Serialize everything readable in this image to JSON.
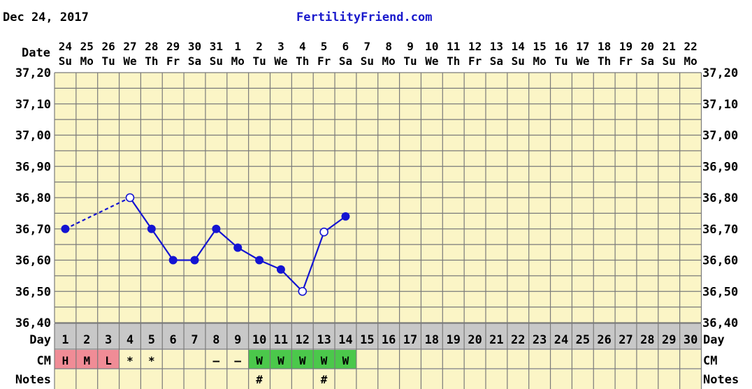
{
  "header": {
    "date": "Dec 24, 2017",
    "site": "FertilityFriend.com"
  },
  "labels": {
    "date_row": "Date",
    "day_row": "Day",
    "cm_row": "CM",
    "notes_row": "Notes"
  },
  "colors": {
    "grid_bg": "#fbf5c6",
    "grid_line": "#7a7a7a",
    "line": "#1414d2",
    "day_bg": "#c8c8c8",
    "period_bg": "#f08c96",
    "cm_watery_bg": "#4bc84b",
    "row_bg": "#fbf5c6"
  },
  "chart_data": {
    "type": "line",
    "title": "",
    "x": {
      "date_numbers": [
        "24",
        "25",
        "26",
        "27",
        "28",
        "29",
        "30",
        "31",
        "1",
        "2",
        "3",
        "4",
        "5",
        "6",
        "7",
        "8",
        "9",
        "10",
        "11",
        "12",
        "13",
        "14",
        "15",
        "16",
        "17",
        "18",
        "19",
        "20",
        "21",
        "22"
      ],
      "weekdays": [
        "Su",
        "Mo",
        "Tu",
        "We",
        "Th",
        "Fr",
        "Sa",
        "Su",
        "Mo",
        "Tu",
        "We",
        "Th",
        "Fr",
        "Sa",
        "Su",
        "Mo",
        "Tu",
        "We",
        "Th",
        "Fr",
        "Sa",
        "Su",
        "Mo",
        "Tu",
        "We",
        "Th",
        "Fr",
        "Sa",
        "Su",
        "Mo"
      ],
      "cycle_days": [
        "1",
        "2",
        "3",
        "4",
        "5",
        "6",
        "7",
        "8",
        "9",
        "10",
        "11",
        "12",
        "13",
        "14",
        "15",
        "16",
        "17",
        "18",
        "19",
        "20",
        "21",
        "22",
        "23",
        "24",
        "25",
        "26",
        "27",
        "28",
        "29",
        "30"
      ]
    },
    "y": {
      "ylim": [
        36.4,
        37.2
      ],
      "tick_values": [
        36.4,
        36.5,
        36.6,
        36.7,
        36.8,
        36.9,
        37.0,
        37.1,
        37.2
      ],
      "tick_labels": [
        "36,40",
        "36,50",
        "36,60",
        "36,70",
        "36,80",
        "36,90",
        "37,00",
        "37,10",
        "37,20"
      ],
      "grid_step": 0.05
    },
    "series": [
      {
        "points": [
          {
            "day": 1,
            "temp": 36.7,
            "marker": "filled"
          },
          {
            "day": 4,
            "temp": 36.8,
            "marker": "open"
          },
          {
            "day": 5,
            "temp": 36.7,
            "marker": "filled"
          },
          {
            "day": 6,
            "temp": 36.6,
            "marker": "filled"
          },
          {
            "day": 7,
            "temp": 36.6,
            "marker": "filled"
          },
          {
            "day": 8,
            "temp": 36.7,
            "marker": "filled"
          },
          {
            "day": 9,
            "temp": 36.64,
            "marker": "filled"
          },
          {
            "day": 10,
            "temp": 36.6,
            "marker": "filled"
          },
          {
            "day": 11,
            "temp": 36.57,
            "marker": "filled"
          },
          {
            "day": 12,
            "temp": 36.5,
            "marker": "open"
          },
          {
            "day": 13,
            "temp": 36.69,
            "marker": "open"
          },
          {
            "day": 14,
            "temp": 36.74,
            "marker": "filled"
          }
        ],
        "dashed_segments": [
          [
            1,
            4
          ]
        ]
      }
    ],
    "cm_row": [
      {
        "day": 1,
        "label": "H",
        "style": "period"
      },
      {
        "day": 2,
        "label": "M",
        "style": "period"
      },
      {
        "day": 3,
        "label": "L",
        "style": "period"
      },
      {
        "day": 4,
        "label": "*",
        "style": "plain"
      },
      {
        "day": 5,
        "label": "*",
        "style": "plain"
      },
      {
        "day": 8,
        "label": "–",
        "style": "plain"
      },
      {
        "day": 9,
        "label": "–",
        "style": "plain"
      },
      {
        "day": 10,
        "label": "W",
        "style": "watery"
      },
      {
        "day": 11,
        "label": "W",
        "style": "watery"
      },
      {
        "day": 12,
        "label": "W",
        "style": "watery"
      },
      {
        "day": 13,
        "label": "W",
        "style": "watery"
      },
      {
        "day": 14,
        "label": "W",
        "style": "watery"
      }
    ],
    "notes_row": [
      {
        "day": 10,
        "label": "#"
      },
      {
        "day": 13,
        "label": "#"
      }
    ],
    "grid": true,
    "legend": "none"
  }
}
